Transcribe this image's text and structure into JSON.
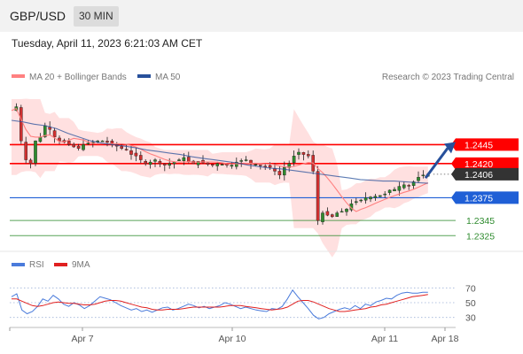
{
  "header": {
    "symbol": "GBP/USD",
    "timeframe": "30 MIN",
    "timestamp": "Tuesday, April 11, 2023 6:21:03 AM CET"
  },
  "legend": {
    "ma20_label": "MA 20 + Bollinger Bands",
    "ma50_label": "MA 50",
    "copyright": "Research © 2023 Trading Central",
    "rsi_label": "RSI",
    "rsi_ma_label": "9MA"
  },
  "colors": {
    "ma20": "#ff8080",
    "bollinger": "#ffdada",
    "ma50": "#27509b",
    "resistance": "#ff0000",
    "pivot": "#1f5fd6",
    "support": "#2e8b2e",
    "arrow": "#27509b",
    "current": "#333333",
    "candle_up": "#2e8b2e",
    "candle_down": "#d03030",
    "rsi": "#4a7bdb",
    "rsi_ma": "#e02020"
  },
  "chart_data": {
    "type": "candlestick",
    "y_range": [
      1.2309,
      1.2519
    ],
    "levels": [
      {
        "label": "1.2445",
        "value": 1.2445,
        "role": "resistance"
      },
      {
        "label": "1.2420",
        "value": 1.242,
        "role": "resistance"
      },
      {
        "label": "1.2406",
        "value": 1.2406,
        "role": "current"
      },
      {
        "label": "1.2375",
        "value": 1.2375,
        "role": "pivot"
      },
      {
        "label": "1.2345",
        "value": 1.2345,
        "role": "support"
      },
      {
        "label": "1.2325",
        "value": 1.2325,
        "role": "support"
      }
    ],
    "forecast_arrow": {
      "from": 1.2401,
      "to": 1.2445
    },
    "x_ticks": [
      "Apr 7",
      "Apr 10",
      "Apr 11",
      "Apr 18"
    ],
    "x_tick_index": [
      15,
      46,
      80,
      92
    ],
    "path": [
      1.249,
      1.2495,
      1.245,
      1.2425,
      1.242,
      1.245,
      1.2455,
      1.247,
      1.2465,
      1.2455,
      1.245,
      1.2448,
      1.2445,
      1.2442,
      1.244,
      1.2445,
      1.2447,
      1.2448,
      1.245,
      1.245,
      1.2448,
      1.2445,
      1.2443,
      1.244,
      1.2438,
      1.2432,
      1.243,
      1.2425,
      1.242,
      1.2422,
      1.2425,
      1.242,
      1.2418,
      1.242,
      1.2422,
      1.2425,
      1.2428,
      1.2422,
      1.242,
      1.2423,
      1.2421,
      1.2419,
      1.2418,
      1.242,
      1.2419,
      1.2418,
      1.2418,
      1.2422,
      1.2424,
      1.2425,
      1.242,
      1.2419,
      1.2417,
      1.2416,
      1.2415,
      1.241,
      1.2405,
      1.2415,
      1.242,
      1.243,
      1.2435,
      1.2432,
      1.243,
      1.241,
      1.2345,
      1.2355,
      1.2352,
      1.235,
      1.2355,
      1.2357,
      1.236,
      1.2367,
      1.237,
      1.2372,
      1.2375,
      1.2376,
      1.2377,
      1.2378,
      1.238,
      1.2385,
      1.2386,
      1.239,
      1.2392,
      1.2391,
      1.2396,
      1.2402,
      1.2405,
      1.2406
    ],
    "ma50": [
      1.2477,
      1.2475,
      1.2472,
      1.247,
      1.2466,
      1.246,
      1.2455,
      1.245,
      1.2447,
      1.2445,
      1.2443,
      1.2441,
      1.2438,
      1.2436,
      1.2434,
      1.2432,
      1.2429,
      1.2427,
      1.2425,
      1.2423,
      1.2421,
      1.2418,
      1.2416,
      1.2414,
      1.2413,
      1.2411,
      1.2409,
      1.2407,
      1.2405,
      1.2403,
      1.2401,
      1.2399,
      1.2398,
      1.2397,
      1.2397,
      1.2396,
      1.2395,
      1.2394
    ],
    "rsi": {
      "levels": [
        70,
        50,
        30
      ],
      "rsi_values": [
        58,
        62,
        40,
        35,
        38,
        45,
        55,
        52,
        60,
        55,
        48,
        45,
        50,
        47,
        42,
        46,
        52,
        58,
        56,
        54,
        50,
        46,
        43,
        40,
        42,
        38,
        40,
        37,
        40,
        43,
        44,
        40,
        42,
        45,
        48,
        46,
        43,
        45,
        42,
        44,
        46,
        50,
        48,
        45,
        42,
        44,
        42,
        40,
        39,
        38,
        42,
        41,
        45,
        55,
        67,
        58,
        50,
        42,
        33,
        28,
        30,
        35,
        38,
        41,
        43,
        41,
        46,
        42,
        48,
        46,
        51,
        53,
        56,
        55,
        60,
        63,
        64,
        63,
        63,
        64,
        64
      ],
      "ma_values": [
        55,
        55,
        52,
        49,
        46,
        45,
        46,
        48,
        50,
        51,
        50,
        49,
        49,
        48,
        47,
        47,
        48,
        50,
        52,
        53,
        53,
        52,
        50,
        48,
        46,
        44,
        43,
        41,
        40,
        40,
        41,
        41,
        41,
        42,
        43,
        44,
        44,
        44,
        44,
        44,
        44,
        45,
        46,
        46,
        46,
        45,
        44,
        43,
        42,
        41,
        40,
        41,
        42,
        44,
        48,
        52,
        53,
        53,
        51,
        48,
        45,
        42,
        40,
        38,
        38,
        39,
        40,
        41,
        42,
        44,
        45,
        47,
        48,
        50,
        52,
        54,
        56,
        58,
        59,
        60,
        61
      ]
    }
  }
}
